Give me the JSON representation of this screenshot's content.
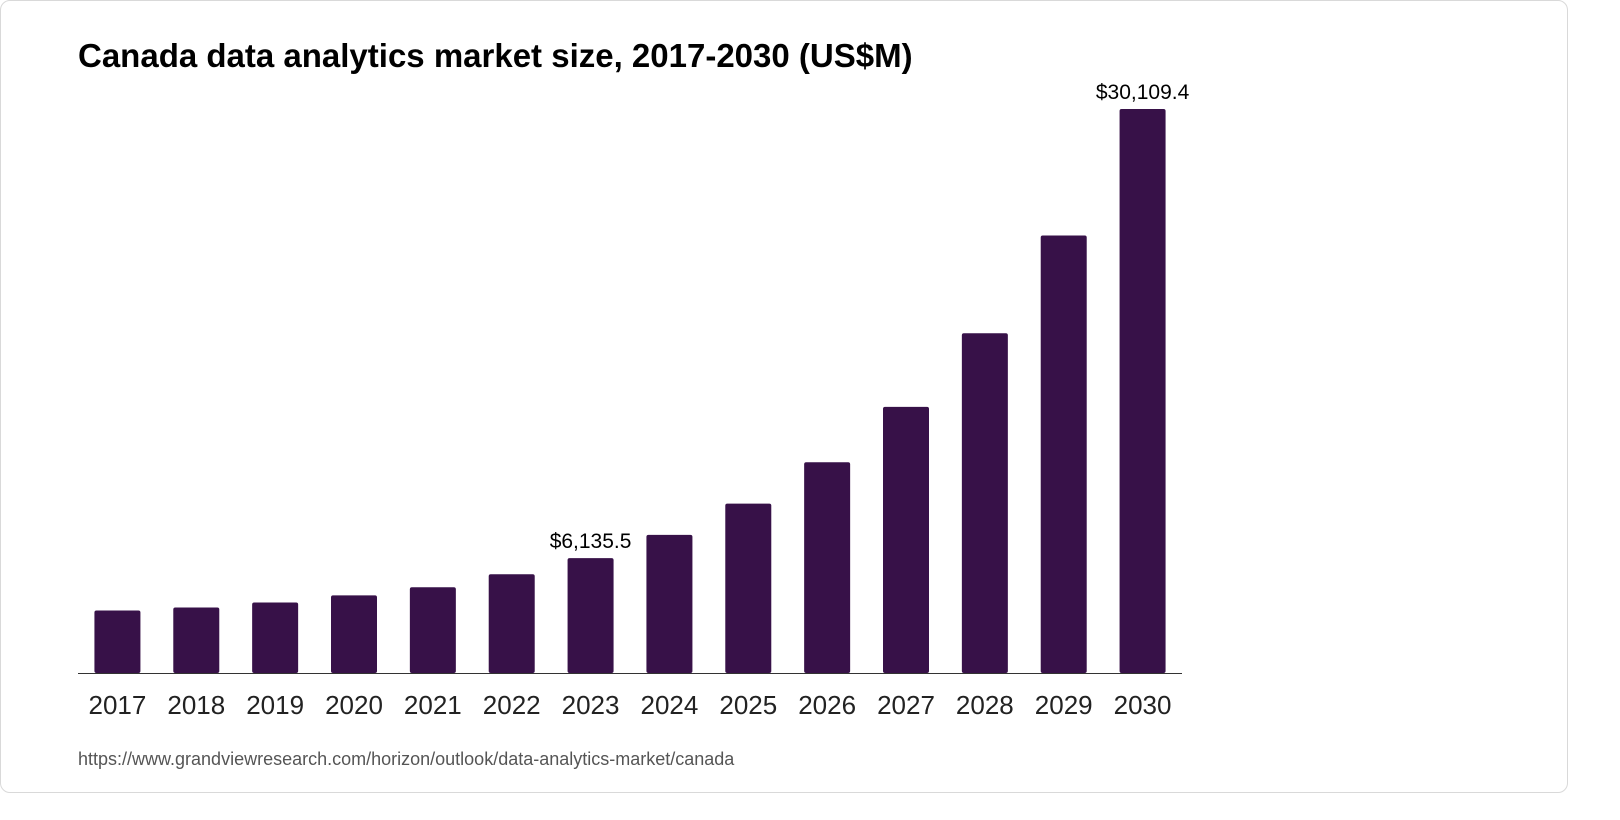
{
  "chart_data": {
    "type": "bar",
    "title": "Canada data analytics market size, 2017-2030 (US$M)",
    "xlabel": "",
    "ylabel": "",
    "categories": [
      "2017",
      "2018",
      "2019",
      "2020",
      "2021",
      "2022",
      "2023",
      "2024",
      "2025",
      "2026",
      "2027",
      "2028",
      "2029",
      "2030"
    ],
    "values": [
      3337,
      3498,
      3767,
      4144,
      4575,
      5274,
      6135.5,
      7373,
      9042,
      11248,
      14209,
      18137,
      23358,
      30109.4
    ],
    "data_labels": [
      {
        "category": "2023",
        "text": "$6,135.5"
      },
      {
        "category": "2030",
        "text": "$30,109.4"
      }
    ],
    "ylim": [
      0,
      30109.4
    ],
    "grid": false,
    "legend": "none",
    "bar_color": "#371148",
    "axis_color": "#333333"
  },
  "source": "https://www.grandviewresearch.com/horizon/outlook/data-analytics-market/canada"
}
